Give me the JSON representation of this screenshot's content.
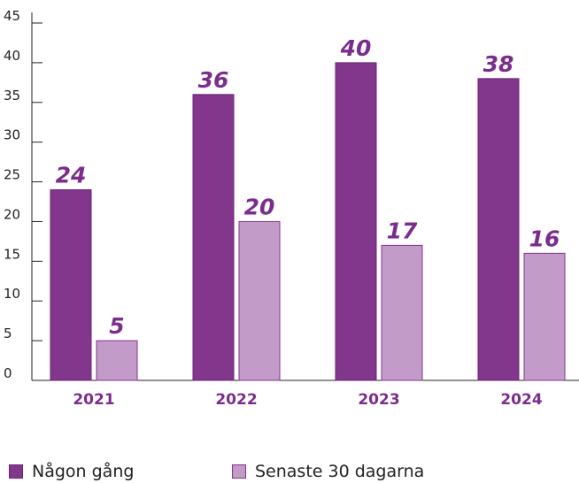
{
  "chart_data": {
    "type": "bar",
    "categories": [
      "2021",
      "2022",
      "2023",
      "2024"
    ],
    "series": [
      {
        "name": "Någon gång",
        "values": [
          24,
          36,
          40,
          38
        ],
        "color": "#82368c",
        "label_color": "#7b2d8e"
      },
      {
        "name": "Senaste 30 dagarna",
        "values": [
          5,
          20,
          17,
          16
        ],
        "color": "#c39bc8",
        "label_color": "#7b2d8e"
      }
    ],
    "title": "",
    "xlabel": "",
    "ylabel": "",
    "ylim": [
      0,
      45
    ],
    "yticks": [
      0,
      5,
      10,
      15,
      20,
      25,
      30,
      35,
      40,
      45
    ],
    "grid": false,
    "data_labels": true,
    "legend_position": "bottom"
  },
  "legend": {
    "items": [
      {
        "label": "Någon gång",
        "color": "#82368c"
      },
      {
        "label": "Senaste 30 dagarna",
        "color": "#c39bc8"
      }
    ]
  }
}
